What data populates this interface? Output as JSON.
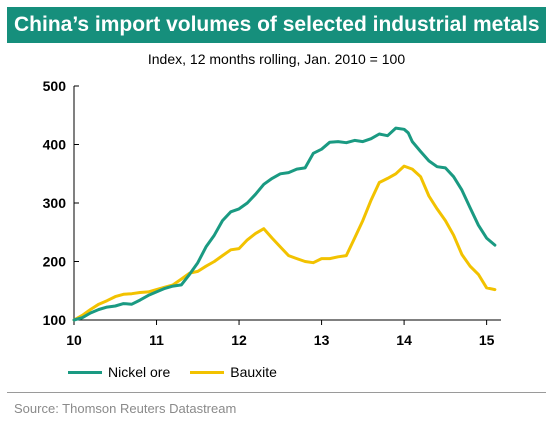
{
  "title": "China’s import volumes of selected industrial metals",
  "subtitle": "Index, 12 months rolling, Jan. 2010 = 100",
  "source": "Source: Thomson Reuters Datastream",
  "colors": {
    "title_bg": "#168f7c",
    "nickel": "#1a9a82",
    "bauxite": "#f2c200"
  },
  "chart_data": {
    "type": "line",
    "title": "China’s import volumes of selected industrial metals",
    "subtitle": "Index, 12 months rolling, Jan. 2010 = 100",
    "xlabel": "",
    "ylabel": "",
    "xlim": [
      10,
      15.15
    ],
    "ylim": [
      100,
      500
    ],
    "xticks": [
      10,
      11,
      12,
      13,
      14,
      15
    ],
    "xtick_labels": [
      "10",
      "11",
      "12",
      "13",
      "14",
      "15"
    ],
    "yticks": [
      100,
      200,
      300,
      400,
      500
    ],
    "ytick_labels": [
      "100",
      "200",
      "300",
      "400",
      "500"
    ],
    "grid": false,
    "legend_position": "bottom-left",
    "series": [
      {
        "name": "Nickel ore",
        "color": "#1a9a82",
        "x": [
          10.0,
          10.1,
          10.2,
          10.3,
          10.4,
          10.5,
          10.6,
          10.7,
          10.8,
          10.9,
          11.0,
          11.1,
          11.2,
          11.3,
          11.4,
          11.5,
          11.6,
          11.7,
          11.8,
          11.9,
          12.0,
          12.1,
          12.2,
          12.3,
          12.4,
          12.5,
          12.6,
          12.7,
          12.8,
          12.9,
          13.0,
          13.1,
          13.2,
          13.3,
          13.4,
          13.5,
          13.6,
          13.7,
          13.8,
          13.9,
          14.0,
          14.05,
          14.1,
          14.2,
          14.3,
          14.4,
          14.5,
          14.6,
          14.7,
          14.8,
          14.9,
          15.0,
          15.1
        ],
        "y": [
          100,
          104,
          112,
          118,
          122,
          124,
          128,
          127,
          134,
          142,
          148,
          154,
          158,
          160,
          178,
          198,
          225,
          245,
          270,
          285,
          290,
          300,
          315,
          332,
          342,
          350,
          352,
          358,
          360,
          385,
          392,
          404,
          405,
          403,
          407,
          405,
          410,
          418,
          415,
          428,
          426,
          420,
          405,
          388,
          372,
          362,
          360,
          345,
          322,
          292,
          262,
          240,
          228
        ]
      },
      {
        "name": "Bauxite",
        "color": "#f2c200",
        "x": [
          10.0,
          10.1,
          10.2,
          10.3,
          10.4,
          10.5,
          10.6,
          10.7,
          10.8,
          10.9,
          11.0,
          11.1,
          11.2,
          11.3,
          11.4,
          11.5,
          11.6,
          11.7,
          11.8,
          11.9,
          12.0,
          12.1,
          12.2,
          12.3,
          12.4,
          12.5,
          12.6,
          12.7,
          12.8,
          12.9,
          13.0,
          13.1,
          13.2,
          13.3,
          13.4,
          13.5,
          13.6,
          13.7,
          13.8,
          13.9,
          14.0,
          14.1,
          14.2,
          14.3,
          14.4,
          14.5,
          14.6,
          14.7,
          14.8,
          14.9,
          15.0,
          15.1
        ],
        "y": [
          100,
          108,
          118,
          127,
          133,
          140,
          144,
          145,
          147,
          148,
          152,
          156,
          160,
          170,
          180,
          183,
          192,
          200,
          210,
          220,
          222,
          237,
          248,
          256,
          240,
          225,
          210,
          205,
          200,
          198,
          205,
          205,
          208,
          210,
          240,
          270,
          305,
          335,
          342,
          350,
          363,
          358,
          345,
          312,
          290,
          270,
          245,
          212,
          192,
          178,
          155,
          152
        ]
      }
    ]
  }
}
